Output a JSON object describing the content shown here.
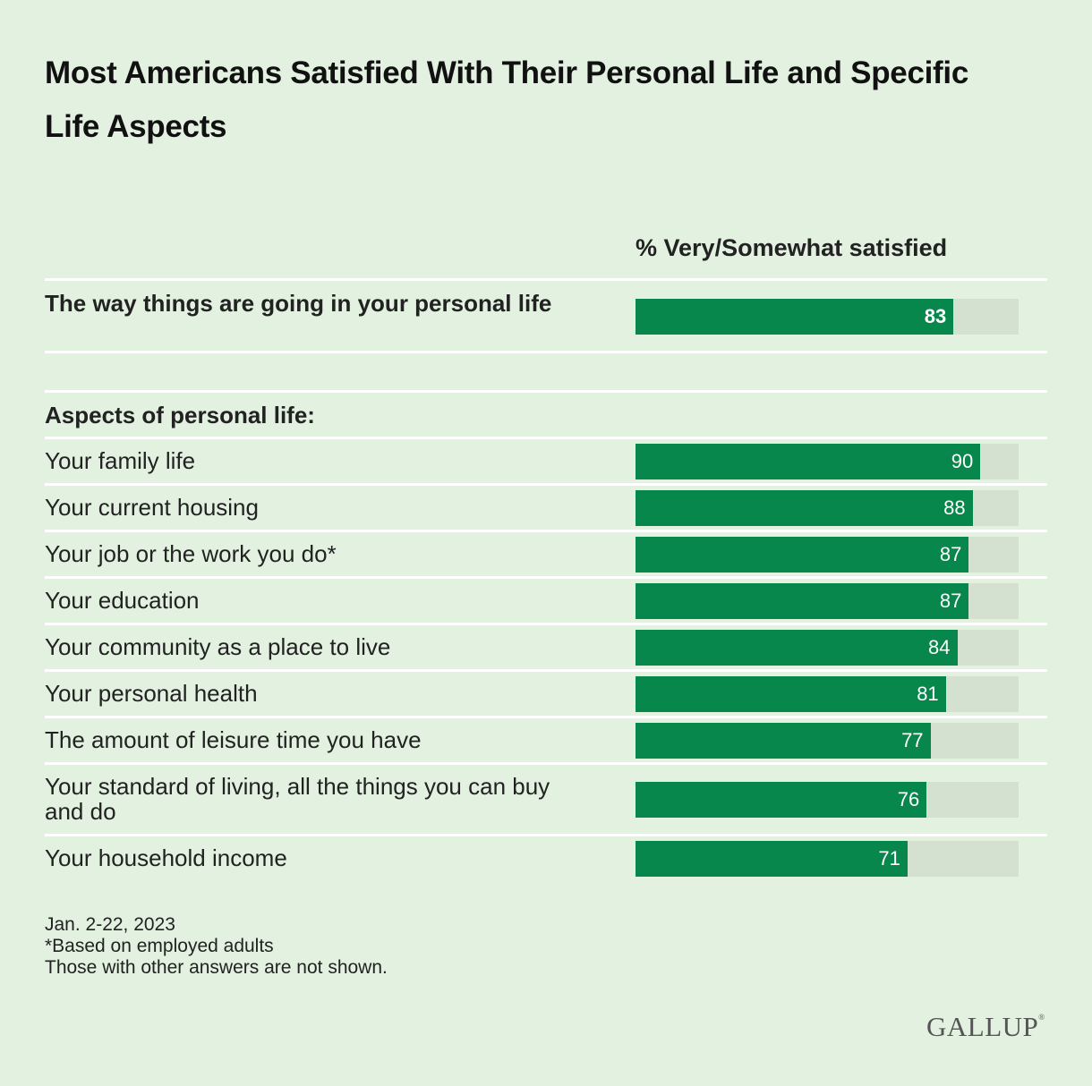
{
  "title": "Most Americans Satisfied With Their Personal Life and Specific Life Aspects",
  "column_header": "% Very/Somewhat satisfied",
  "section_label": "Aspects of personal life:",
  "notes": [
    "Jan. 2-22, 2023",
    "*Based on employed adults",
    "Those with other answers are not shown."
  ],
  "logo": "GALLUP",
  "logo_mark": "®",
  "colors": {
    "bar": "#07874c",
    "track": "#d4e0d0",
    "background": "#e3f1e1"
  },
  "chart_data": {
    "type": "bar",
    "orientation": "horizontal",
    "title": "Most Americans Satisfied With Their Personal Life and Specific Life Aspects",
    "xlabel": "% Very/Somewhat satisfied",
    "xlim": [
      0,
      100
    ],
    "summary": {
      "category": "The way things are going in your personal life",
      "value": 83
    },
    "categories": [
      "Your family life",
      "Your current housing",
      "Your job or the work you do*",
      "Your education",
      "Your community as a place to live",
      "Your personal health",
      "The amount of leisure time you have",
      "Your standard of living, all the things you can buy and do",
      "Your household income"
    ],
    "values": [
      90,
      88,
      87,
      87,
      84,
      81,
      77,
      76,
      71
    ]
  }
}
